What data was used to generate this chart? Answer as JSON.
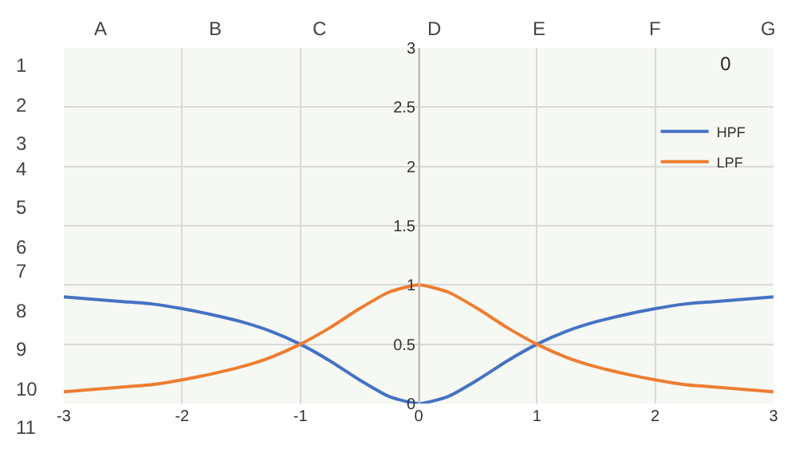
{
  "chart_data": {
    "type": "line",
    "title": "0",
    "x": [
      -3,
      -2.75,
      -2.5,
      -2.25,
      -2,
      -1.75,
      -1.5,
      -1.25,
      -1,
      -0.75,
      -0.5,
      -0.25,
      0,
      0.25,
      0.5,
      0.75,
      1,
      1.25,
      1.5,
      1.75,
      2,
      2.25,
      2.5,
      2.75,
      3
    ],
    "series": [
      {
        "name": "HPF",
        "color": "#4472c4",
        "values": [
          0.9,
          0.88,
          0.86,
          0.84,
          0.8,
          0.75,
          0.69,
          0.61,
          0.5,
          0.36,
          0.2,
          0.06,
          0,
          0.06,
          0.2,
          0.36,
          0.5,
          0.61,
          0.69,
          0.75,
          0.8,
          0.84,
          0.86,
          0.88,
          0.9
        ]
      },
      {
        "name": "LPF",
        "color": "#ed7d31",
        "values": [
          0.1,
          0.12,
          0.14,
          0.16,
          0.2,
          0.25,
          0.31,
          0.39,
          0.5,
          0.64,
          0.8,
          0.94,
          1,
          0.94,
          0.8,
          0.64,
          0.5,
          0.39,
          0.31,
          0.25,
          0.2,
          0.16,
          0.14,
          0.12,
          0.1
        ]
      }
    ],
    "xlim": [
      -3,
      3
    ],
    "xticks": [
      -3,
      -2,
      -1,
      0,
      1,
      2,
      3
    ],
    "ylim": [
      0,
      3
    ],
    "yticks": [
      0,
      0.5,
      1,
      1.5,
      2,
      2.5,
      3
    ],
    "grid": true,
    "legend": "top right",
    "marker": "none",
    "line_style": "solid",
    "annotations": [
      "A",
      "B",
      "C",
      "D",
      "E",
      "F",
      "G",
      "1",
      "2",
      "3",
      "4",
      "5",
      "6",
      "7",
      "8",
      "9",
      "10",
      "11"
    ]
  }
}
